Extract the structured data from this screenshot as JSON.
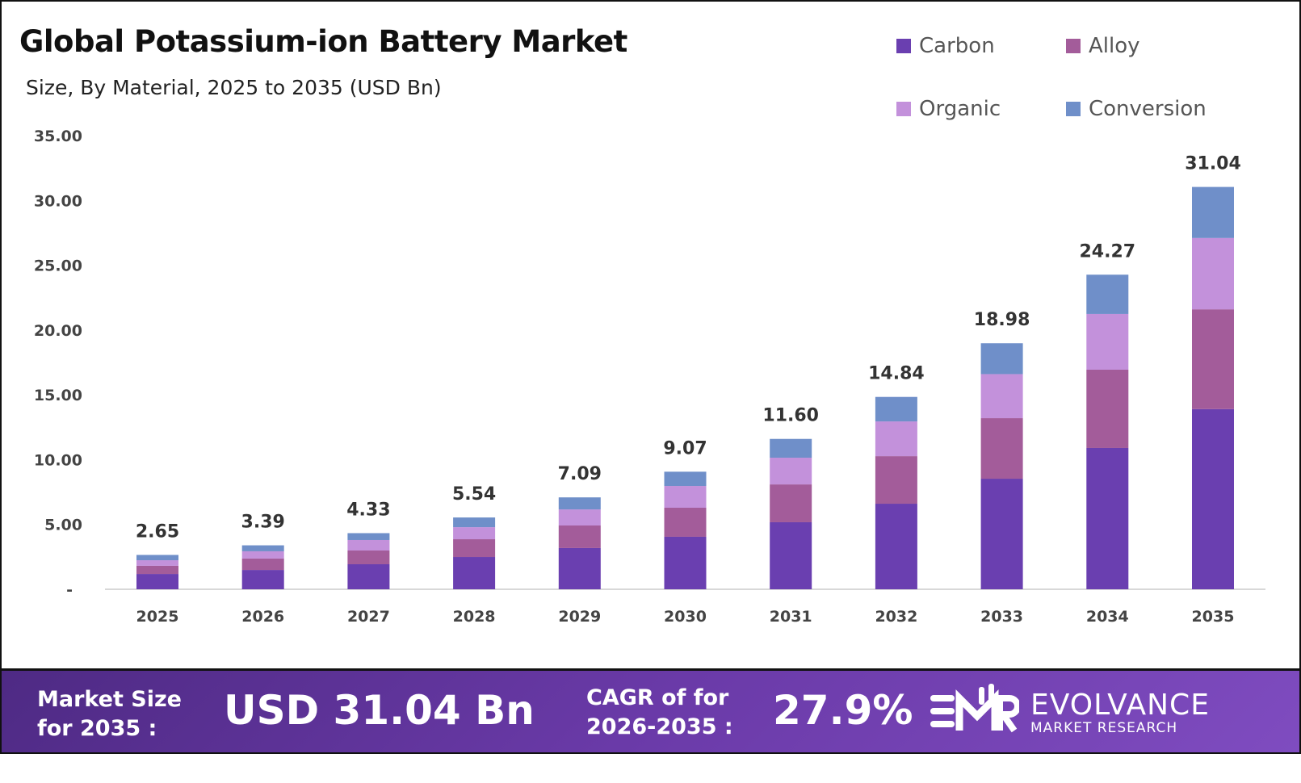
{
  "chart_data": {
    "type": "bar",
    "stacked": true,
    "title": "Global Potassium-ion Battery Market",
    "subtitle": "Size, By Material, 2025 to 2035 (USD Bn)",
    "categories": [
      "2025",
      "2026",
      "2027",
      "2028",
      "2029",
      "2030",
      "2031",
      "2032",
      "2033",
      "2034",
      "2035"
    ],
    "series": [
      {
        "name": "Carbon",
        "color": "#6a3fb0",
        "values": [
          1.18,
          1.49,
          1.93,
          2.49,
          3.18,
          4.05,
          5.17,
          6.6,
          8.53,
          10.9,
          13.9
        ]
      },
      {
        "name": "Alloy",
        "color": "#a35c9a",
        "values": [
          0.63,
          0.88,
          1.06,
          1.37,
          1.74,
          2.24,
          2.92,
          3.67,
          4.67,
          6.04,
          7.7
        ]
      },
      {
        "name": "Organic",
        "color": "#c391db",
        "values": [
          0.43,
          0.56,
          0.81,
          0.93,
          1.24,
          1.68,
          2.06,
          2.68,
          3.4,
          4.3,
          5.5
        ]
      },
      {
        "name": "Conversion",
        "color": "#6f8fc9",
        "values": [
          0.41,
          0.46,
          0.53,
          0.75,
          0.93,
          1.1,
          1.45,
          1.89,
          2.38,
          3.03,
          3.94
        ]
      }
    ],
    "totals": [
      "2.65",
      "3.39",
      "4.33",
      "5.54",
      "7.09",
      "9.07",
      "11.60",
      "14.84",
      "18.98",
      "24.27",
      "31.04"
    ],
    "yticks": [
      "-",
      "5.00",
      "10.00",
      "15.00",
      "20.00",
      "25.00",
      "30.00",
      "35.00"
    ],
    "ylim": [
      0,
      35
    ],
    "grid": false,
    "legend_position": "top-right"
  },
  "banner": {
    "market_size_label_1": "Market Size",
    "market_size_label_2": "for 2035 :",
    "market_size_value": "USD 31.04 Bn",
    "cagr_label_1": "CAGR of for",
    "cagr_label_2": "2026-2035 :",
    "cagr_value": "27.9%",
    "logo_mark": "EMR",
    "logo_name": "EVOLVANCE",
    "logo_sub": "MARKET RESEARCH"
  }
}
